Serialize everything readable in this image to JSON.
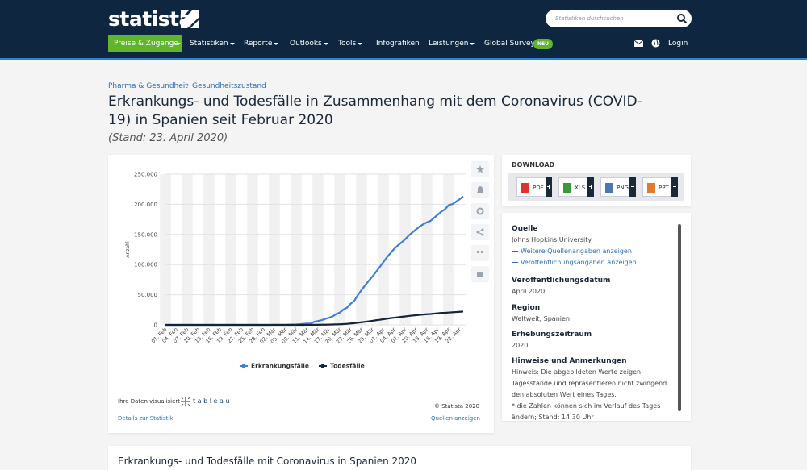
{
  "header": {
    "logo": "statista",
    "search_placeholder": "Statistiken durchsuchen",
    "nav": [
      "Preise & Zugänge",
      "Statistiken",
      "Reporte",
      "Outlooks",
      "Tools",
      "Infografiken",
      "Leistungen",
      "Global Survey"
    ],
    "badge": "NEU",
    "login": "Login"
  },
  "breadcrumb": [
    "Pharma & Gesundheit",
    "Gesundheitszustand"
  ],
  "title": "Erkrankungs- und Todesfälle in Zusammenhang mit dem Coronavirus (COVID-19) in Spanien seit Februar 2020",
  "subtitle": "(Stand: 23. April 2020)",
  "chart_data": {
    "type": "line",
    "y_label": "Anzahl",
    "categories": [
      "01. Feb",
      null,
      null,
      "04. Feb",
      null,
      null,
      "07. Feb",
      null,
      null,
      "10. Feb",
      null,
      null,
      "13. Feb",
      null,
      null,
      "16. Feb",
      null,
      null,
      "19. Feb",
      null,
      null,
      "22. Feb",
      null,
      null,
      "25. Feb",
      null,
      null,
      "28. Feb",
      null,
      null,
      "02. Mär",
      null,
      null,
      "05. Mär",
      null,
      null,
      "08. Mär",
      null,
      null,
      "11. Mär",
      null,
      null,
      "14. Mär",
      null,
      null,
      "17. Mär",
      null,
      null,
      "20. Mär",
      null,
      null,
      "23. Mär",
      null,
      null,
      "26. Mär",
      null,
      null,
      "29. Mär",
      null,
      null,
      "01. Apr",
      null,
      null,
      "04. Apr",
      null,
      null,
      "07. Apr",
      null,
      null,
      "10. Apr",
      null,
      null,
      "13. Apr",
      null,
      null,
      "16. Apr",
      null,
      null,
      "19. Apr",
      null,
      null,
      "22. Apr",
      null
    ],
    "series": [
      {
        "name": "Erkrankungsfälle",
        "color": "#3f7fd4",
        "values": [
          1,
          1,
          1,
          1,
          1,
          1,
          1,
          1,
          2,
          2,
          2,
          2,
          2,
          2,
          2,
          2,
          2,
          2,
          2,
          2,
          2,
          2,
          2,
          2,
          6,
          13,
          15,
          32,
          45,
          84,
          120,
          165,
          222,
          259,
          400,
          500,
          673,
          1073,
          1695,
          2277,
          2277,
          5232,
          6391,
          7798,
          9942,
          11748,
          13910,
          17963,
          20410,
          25374,
          28603,
          35136,
          39885,
          49515,
          57786,
          65719,
          73235,
          80110,
          87956,
          95923,
          104118,
          112065,
          119199,
          126168,
          131646,
          136675,
          141942,
          148220,
          153222,
          158273,
          163027,
          166831,
          170099,
          172541,
          177633,
          182816,
          188068,
          191726,
          198674,
          200210,
          204178,
          208389,
          213024
        ]
      },
      {
        "name": "Todesfälle",
        "color": "#14253a",
        "values": [
          0,
          0,
          0,
          0,
          0,
          0,
          0,
          0,
          0,
          0,
          0,
          0,
          0,
          0,
          0,
          0,
          0,
          0,
          0,
          0,
          0,
          0,
          0,
          0,
          0,
          0,
          0,
          0,
          0,
          0,
          0,
          1,
          2,
          3,
          5,
          10,
          17,
          28,
          35,
          54,
          55,
          133,
          195,
          289,
          342,
          533,
          623,
          830,
          1043,
          1375,
          1772,
          2311,
          2808,
          3647,
          4365,
          5138,
          5982,
          6803,
          7716,
          8464,
          9387,
          10348,
          11198,
          11947,
          12641,
          13341,
          14045,
          14792,
          15447,
          16081,
          16606,
          17209,
          17756,
          18056,
          18708,
          19315,
          20002,
          20043,
          20453,
          20852,
          21282,
          21717,
          22157
        ]
      }
    ],
    "ylim": [
      0,
      250000
    ],
    "yticks": [
      0,
      {
        "value": 50000,
        "label": "50.000"
      },
      {
        "value": 100000,
        "label": "100.000"
      },
      {
        "value": 150000,
        "label": "150.000"
      },
      {
        "value": 200000,
        "label": "200.000"
      },
      {
        "value": 250000,
        "label": "250.000"
      }
    ],
    "grid": true,
    "legend": "bottom"
  },
  "chart_footer": {
    "tableau_text": "Ihre Daten visualisiert",
    "tableau": "t a b l e a u",
    "copyright": "© Statista 2020",
    "details": "Details zur Statistik",
    "sources": "Quellen anzeigen"
  },
  "download": {
    "title": "DOWNLOAD",
    "formats": [
      "PDF",
      "XLS",
      "PNG",
      "PPT"
    ]
  },
  "info": [
    {
      "heading": "Quelle",
      "lines": [
        "Johns Hopkins University"
      ],
      "links": [
        "Weitere Quellenangaben anzeigen",
        "Veröffentlichungsangaben anzeigen"
      ]
    },
    {
      "heading": "Veröffentlichungsdatum",
      "lines": [
        "April 2020"
      ]
    },
    {
      "heading": "Region",
      "lines": [
        "Weltweit, Spanien"
      ]
    },
    {
      "heading": "Erhebungszeitraum",
      "lines": [
        "2020"
      ]
    },
    {
      "heading": "Hinweise und Anmerkungen",
      "lines": [
        "Hinweis: Die abgebildeten Werte zeigen Tagesstände und repräsentieren nicht zwingend den absoluten Wert eines Tages.",
        "* die Zahlen können sich im Verlauf des Tages ändern; Stand: 14:30 Uhr"
      ]
    }
  ],
  "next_title": "Erkrankungs- und Todesfälle mit Coronavirus in Spanien 2020"
}
